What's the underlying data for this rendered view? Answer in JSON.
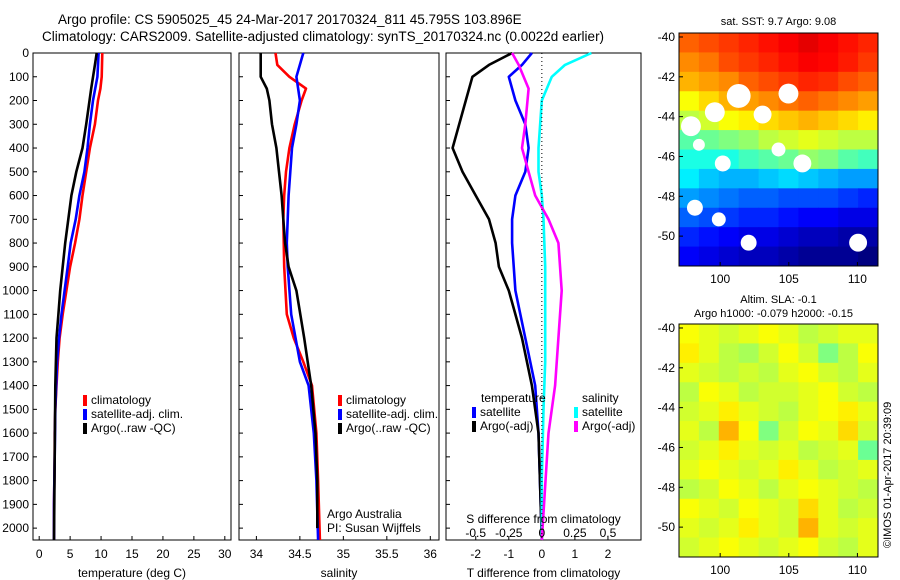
{
  "header": {
    "line1": "Argo profile: CS 5905025_45 24-Mar-2017 20170324_811 45.795S 103.896E",
    "line2": "Climatology: CARS2009. Satellite-adjusted climatology: synTS_20170324.nc (0.0022d earlier)"
  },
  "side_label": "©IMOS 01-Apr-2017 20:39:09",
  "colors": {
    "clim": "#ff0000",
    "sat": "#0000ff",
    "argo": "#000000",
    "sal_sat": "#00ffff",
    "sal_argo": "#ff00ff"
  },
  "chart_data": [
    {
      "id": "temperature",
      "type": "line",
      "xlabel": "temperature (deg C)",
      "ylabel": "",
      "xlim": [
        -1,
        31
      ],
      "ylim": [
        2050,
        0
      ],
      "xticks": [
        0,
        5,
        10,
        15,
        20,
        25,
        30
      ],
      "yticks": [
        0,
        100,
        200,
        300,
        400,
        500,
        600,
        700,
        800,
        900,
        1000,
        1100,
        1200,
        1300,
        1400,
        1500,
        1600,
        1700,
        1800,
        1900,
        2000
      ],
      "legend": [
        "climatology",
        "satellite-adj. clim.",
        "Argo(..raw -QC)"
      ],
      "series": [
        {
          "name": "climatology",
          "color": "#ff0000",
          "x": [
            10.2,
            10.1,
            9.9,
            9.5,
            9.0,
            8.2,
            7.6,
            7.0,
            6.5,
            5.8,
            5.0,
            4.4,
            3.8,
            3.3,
            3.0,
            2.8,
            2.6,
            2.5,
            2.5,
            2.4,
            2.4
          ],
          "y": [
            0,
            100,
            150,
            200,
            300,
            400,
            500,
            600,
            700,
            800,
            900,
            1000,
            1100,
            1200,
            1300,
            1400,
            1500,
            1600,
            1700,
            1900,
            2050
          ]
        },
        {
          "name": "satellite-adj. clim.",
          "color": "#0000ff",
          "x": [
            9.6,
            9.4,
            8.7,
            8.2,
            7.8,
            7.3,
            6.5,
            5.9,
            5.1,
            4.6,
            4.1,
            3.6,
            3.2,
            2.9,
            2.6,
            2.5,
            2.4,
            2.4
          ],
          "y": [
            0,
            100,
            200,
            300,
            400,
            500,
            600,
            700,
            800,
            900,
            1000,
            1100,
            1200,
            1300,
            1500,
            1700,
            1900,
            2050
          ]
        },
        {
          "name": "Argo(..raw -QC)",
          "color": "#000000",
          "x": [
            9.3,
            9.0,
            8.4,
            7.6,
            7.0,
            6.0,
            5.2,
            4.7,
            4.2,
            3.8,
            3.4,
            3.1,
            2.8,
            2.6,
            2.5,
            2.4
          ],
          "y": [
            0,
            50,
            150,
            300,
            400,
            500,
            600,
            700,
            800,
            900,
            1000,
            1100,
            1200,
            1400,
            1700,
            2050
          ]
        }
      ]
    },
    {
      "id": "salinity",
      "type": "line",
      "xlabel": "salinity",
      "ylabel": "",
      "xlim": [
        33.8,
        36.1
      ],
      "ylim": [
        2050,
        0
      ],
      "xticks": [
        34,
        34.5,
        35,
        35.5,
        36
      ],
      "legend": [
        "climatology",
        "satellite-adj. clim.",
        "Argo(..raw -QC)"
      ],
      "annotation": [
        "Argo Australia",
        "PI: Susan Wijffels"
      ],
      "series": [
        {
          "name": "climatology",
          "color": "#ff0000",
          "x": [
            34.22,
            34.24,
            34.38,
            34.57,
            34.52,
            34.44,
            34.38,
            34.34,
            34.32,
            34.31,
            34.32,
            34.35,
            34.43,
            34.54,
            34.64,
            34.69,
            34.71,
            34.73
          ],
          "y": [
            0,
            50,
            100,
            150,
            200,
            300,
            400,
            500,
            600,
            700,
            900,
            1100,
            1200,
            1300,
            1400,
            1600,
            1800,
            2050
          ]
        },
        {
          "name": "satellite-adj. clim.",
          "color": "#0000ff",
          "x": [
            34.54,
            34.46,
            34.5,
            34.46,
            34.41,
            34.39,
            34.37,
            34.36,
            34.35,
            34.36,
            34.4,
            34.5,
            34.6,
            34.66,
            34.69,
            34.71
          ],
          "y": [
            0,
            100,
            200,
            300,
            400,
            500,
            600,
            700,
            800,
            900,
            1100,
            1300,
            1400,
            1600,
            1800,
            2050
          ]
        },
        {
          "name": "Argo(..raw -QC)",
          "color": "#000000",
          "x": [
            34.05,
            34.05,
            34.12,
            34.15,
            34.18,
            34.23,
            34.26,
            34.29,
            34.31,
            34.33,
            34.37,
            34.46,
            34.55,
            34.63,
            34.68,
            34.7,
            34.7
          ],
          "y": [
            0,
            100,
            150,
            200,
            300,
            400,
            500,
            600,
            700,
            800,
            900,
            1000,
            1200,
            1400,
            1600,
            1800,
            2000
          ]
        }
      ]
    },
    {
      "id": "difference",
      "type": "line",
      "xlabel": "T difference from climatology",
      "xlabel_top": "S difference from climatology",
      "xlim": [
        -2.9,
        3.0
      ],
      "ylim": [
        2050,
        0
      ],
      "xticks": [
        -2,
        -1,
        0,
        1,
        2
      ],
      "xticks_top": [
        -0.5,
        -0.25,
        0,
        0.25,
        0.5
      ],
      "xticks_top_labels": [
        "-0.5",
        "-0.25",
        "0",
        "0.25",
        "0.5"
      ],
      "legend_left": [
        "temperature",
        "satellite",
        "Argo(-adj)"
      ],
      "legend_right": [
        "salinity",
        "satellite",
        "Argo(-adj)"
      ],
      "series": [
        {
          "name": "satellite",
          "color": "#0000ff",
          "x": [
            -0.3,
            -0.6,
            -1.0,
            -0.8,
            -0.5,
            -0.4,
            -0.5,
            -0.8,
            -0.9,
            -0.9,
            -0.8,
            -0.5,
            -0.2,
            -0.1,
            0.0
          ],
          "y": [
            0,
            50,
            100,
            200,
            300,
            400,
            500,
            600,
            700,
            800,
            1000,
            1200,
            1400,
            1600,
            2050
          ]
        },
        {
          "name": "Argo(-adj)",
          "color": "#000000",
          "x": [
            -0.9,
            -1.6,
            -2.1,
            -2.3,
            -2.7,
            -2.4,
            -2.0,
            -1.6,
            -1.4,
            -1.3,
            -1.0,
            -0.6,
            -0.3,
            -0.1,
            0.0
          ],
          "y": [
            0,
            50,
            100,
            200,
            400,
            500,
            600,
            700,
            800,
            900,
            1000,
            1200,
            1400,
            1600,
            2050
          ]
        },
        {
          "name": "satellite",
          "color": "#00ffff",
          "x": [
            1.5,
            0.7,
            0.3,
            0.0,
            -0.1,
            -0.1,
            0.0,
            0.05,
            0.1,
            0.1,
            0.1,
            0.05,
            0.0,
            0.0
          ],
          "y": [
            0,
            50,
            100,
            200,
            400,
            500,
            600,
            700,
            900,
            1100,
            1300,
            1500,
            1800,
            2050
          ]
        },
        {
          "name": "Argo(-adj)",
          "color": "#ff00ff",
          "x": [
            -0.9,
            -0.7,
            -0.4,
            -0.5,
            -0.6,
            -0.4,
            -0.2,
            0.2,
            0.5,
            0.6,
            0.5,
            0.4,
            0.2,
            0.0
          ],
          "y": [
            0,
            50,
            150,
            300,
            400,
            500,
            600,
            700,
            800,
            1000,
            1200,
            1400,
            1600,
            2050
          ]
        }
      ]
    },
    {
      "id": "sst_map",
      "type": "heatmap",
      "title": "sat. SST: 9.7 Argo: 9.08",
      "xlim": [
        97,
        111.5
      ],
      "ylim": [
        -51.5,
        -39.8
      ],
      "xticks": [
        100,
        105,
        110
      ],
      "yticks": [
        -40,
        -42,
        -44,
        -46,
        -48,
        -50
      ],
      "ytick_labels": [
        "-40",
        "-42",
        "-44",
        "-46",
        "-48",
        "-50"
      ],
      "grid": {
        "rows": 12,
        "cols": 10,
        "values": [
          [
            0.78,
            0.8,
            0.82,
            0.84,
            0.86,
            0.88,
            0.9,
            0.88,
            0.86,
            0.84
          ],
          [
            0.74,
            0.76,
            0.8,
            0.82,
            0.84,
            0.86,
            0.88,
            0.87,
            0.85,
            0.82
          ],
          [
            0.7,
            0.72,
            0.74,
            0.78,
            0.8,
            0.82,
            0.84,
            0.83,
            0.8,
            0.78
          ],
          [
            0.62,
            0.66,
            0.7,
            0.72,
            0.74,
            0.76,
            0.78,
            0.76,
            0.74,
            0.72
          ],
          [
            0.56,
            0.58,
            0.62,
            0.64,
            0.66,
            0.68,
            0.7,
            0.68,
            0.66,
            0.64
          ],
          [
            0.46,
            0.48,
            0.5,
            0.52,
            0.56,
            0.58,
            0.6,
            0.58,
            0.56,
            0.56
          ],
          [
            0.4,
            0.4,
            0.4,
            0.44,
            0.46,
            0.48,
            0.52,
            0.5,
            0.46,
            0.44
          ],
          [
            0.36,
            0.32,
            0.3,
            0.3,
            0.32,
            0.34,
            0.32,
            0.3,
            0.28,
            0.28
          ],
          [
            0.28,
            0.26,
            0.24,
            0.22,
            0.22,
            0.2,
            0.2,
            0.2,
            0.18,
            0.16
          ],
          [
            0.22,
            0.2,
            0.18,
            0.16,
            0.16,
            0.14,
            0.12,
            0.12,
            0.1,
            0.1
          ],
          [
            0.16,
            0.14,
            0.12,
            0.1,
            0.1,
            0.08,
            0.06,
            0.06,
            0.04,
            0.04
          ],
          [
            0.12,
            0.1,
            0.08,
            0.06,
            0.06,
            0.04,
            0.02,
            0.02,
            0.02,
            0.0
          ]
        ]
      }
    },
    {
      "id": "sla_map",
      "type": "heatmap",
      "title": "Altim. SLA: -0.1",
      "subtitle": "Argo h1000: -0.079 h2000: -0.15",
      "xlim": [
        97,
        111.5
      ],
      "ylim": [
        -51.5,
        -39.8
      ],
      "xticks": [
        100,
        105,
        110
      ],
      "yticks": [
        -40,
        -42,
        -44,
        -46,
        -48,
        -50
      ],
      "ytick_labels": [
        "-40",
        "-42",
        "-44",
        "-46",
        "-48",
        "-50"
      ],
      "grid": {
        "rows": 12,
        "cols": 10,
        "values": [
          [
            0.62,
            0.6,
            0.58,
            0.6,
            0.62,
            0.6,
            0.56,
            0.58,
            0.6,
            0.6
          ],
          [
            0.64,
            0.6,
            0.56,
            0.54,
            0.58,
            0.62,
            0.58,
            0.5,
            0.56,
            0.62
          ],
          [
            0.6,
            0.58,
            0.56,
            0.58,
            0.56,
            0.6,
            0.62,
            0.58,
            0.56,
            0.6
          ],
          [
            0.56,
            0.62,
            0.6,
            0.56,
            0.58,
            0.58,
            0.6,
            0.62,
            0.58,
            0.56
          ],
          [
            0.58,
            0.6,
            0.64,
            0.6,
            0.58,
            0.56,
            0.6,
            0.62,
            0.64,
            0.6
          ],
          [
            0.6,
            0.56,
            0.7,
            0.62,
            0.5,
            0.58,
            0.62,
            0.6,
            0.66,
            0.58
          ],
          [
            0.58,
            0.6,
            0.64,
            0.6,
            0.58,
            0.6,
            0.56,
            0.58,
            0.6,
            0.48
          ],
          [
            0.6,
            0.62,
            0.6,
            0.58,
            0.6,
            0.64,
            0.6,
            0.56,
            0.58,
            0.6
          ],
          [
            0.56,
            0.58,
            0.62,
            0.6,
            0.56,
            0.6,
            0.62,
            0.6,
            0.58,
            0.56
          ],
          [
            0.62,
            0.6,
            0.58,
            0.62,
            0.6,
            0.58,
            0.66,
            0.6,
            0.56,
            0.58
          ],
          [
            0.6,
            0.58,
            0.6,
            0.64,
            0.6,
            0.58,
            0.7,
            0.6,
            0.58,
            0.6
          ],
          [
            0.58,
            0.6,
            0.62,
            0.6,
            0.58,
            0.6,
            0.62,
            0.58,
            0.56,
            0.6
          ]
        ]
      }
    }
  ]
}
